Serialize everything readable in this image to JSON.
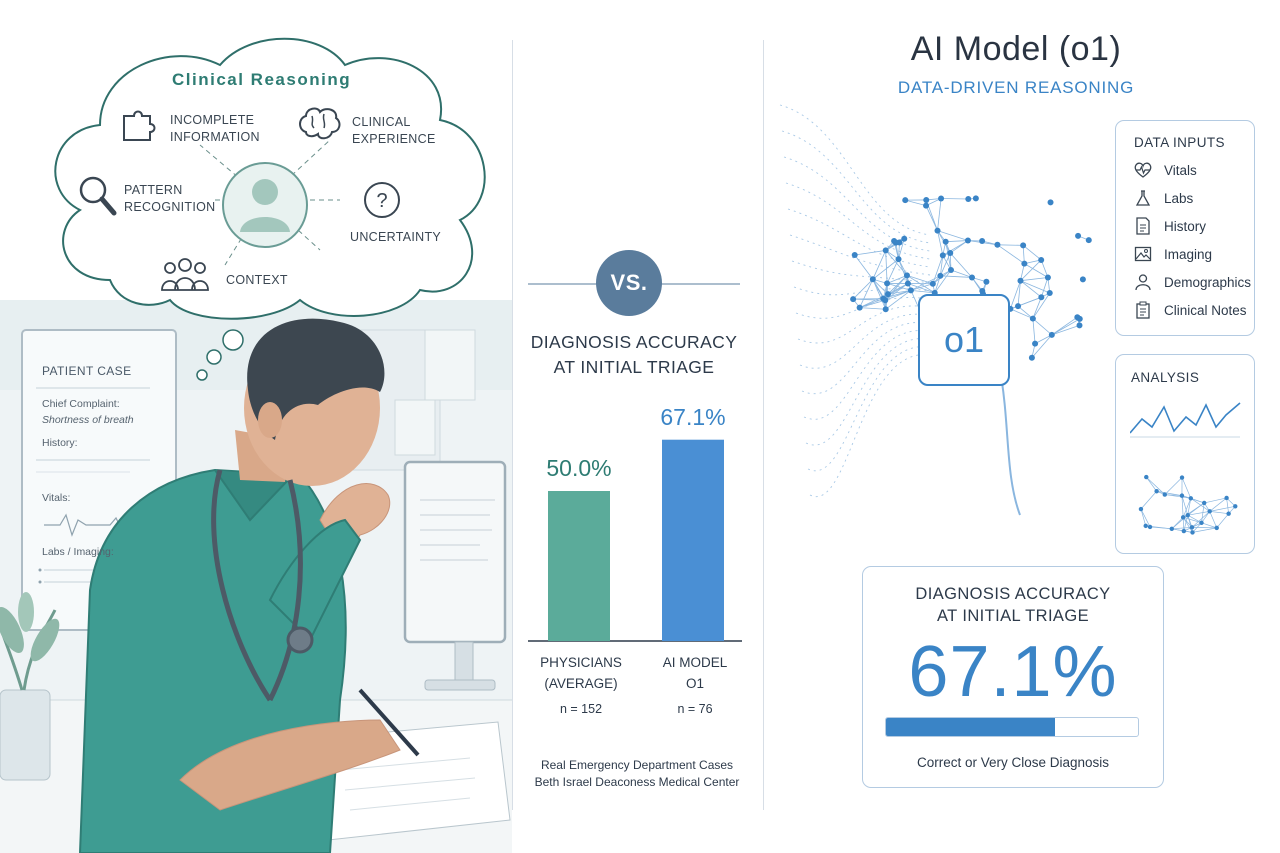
{
  "left": {
    "thought": {
      "title": "Clinical Reasoning",
      "items": [
        {
          "line1": "Incomplete",
          "line2": "Information",
          "icon": "puzzle-icon"
        },
        {
          "line1": "Clinical",
          "line2": "Experience",
          "icon": "brain-icon"
        },
        {
          "line1": "Pattern",
          "line2": "Recognition",
          "icon": "magnifier-icon"
        },
        {
          "line1": "Uncertainty",
          "line2": "",
          "icon": "question-icon"
        },
        {
          "line1": "Context",
          "line2": "",
          "icon": "people-icon"
        }
      ]
    },
    "patient_case": {
      "title": "Patient Case",
      "chief_complaint_label": "Chief Complaint:",
      "chief_complaint_value": "Shortness of breath",
      "history_label": "History:",
      "vitals_label": "Vitals:",
      "labs_label": "Labs / Imaging:"
    }
  },
  "middle": {
    "vs": "VS.",
    "title_line1": "Diagnosis Accuracy",
    "title_line2": "at Initial Triage",
    "source_line1": "Real Emergency Department Cases",
    "source_line2": "Beth Israel Deaconess Medical Center"
  },
  "chart_data": {
    "type": "bar",
    "title": "Diagnosis Accuracy at Initial Triage",
    "categories": [
      "Physicians (Average)",
      "AI Model o1"
    ],
    "values": [
      50.0,
      67.1
    ],
    "value_labels": [
      "50.0%",
      "67.1%"
    ],
    "category_line1": [
      "Physicians",
      "AI Model"
    ],
    "category_line2": [
      "(Average)",
      "o1"
    ],
    "sample_sizes": [
      "n = 152",
      "n = 76"
    ],
    "colors": [
      "#5bab9a",
      "#4a8fd4"
    ],
    "value_colors": [
      "#2e7c73",
      "#3a84c6"
    ],
    "ylim": [
      0,
      100
    ],
    "grid": false,
    "legend": "none"
  },
  "right": {
    "title": "AI Model (o1)",
    "subtitle": "Data-Driven Reasoning",
    "model_badge": "o1",
    "data_inputs": {
      "title": "Data Inputs",
      "items": [
        {
          "label": "Vitals",
          "icon": "heartbeat-icon"
        },
        {
          "label": "Labs",
          "icon": "flask-icon"
        },
        {
          "label": "History",
          "icon": "document-icon"
        },
        {
          "label": "Imaging",
          "icon": "image-icon"
        },
        {
          "label": "Demographics",
          "icon": "person-icon"
        },
        {
          "label": "Clinical Notes",
          "icon": "clipboard-icon"
        }
      ]
    },
    "analysis": {
      "title": "Analysis"
    },
    "accuracy": {
      "title_line1": "Diagnosis Accuracy",
      "title_line2": "at Initial Triage",
      "value": "67.1%",
      "fraction": 0.671,
      "caption": "Correct or Very Close Diagnosis"
    }
  }
}
